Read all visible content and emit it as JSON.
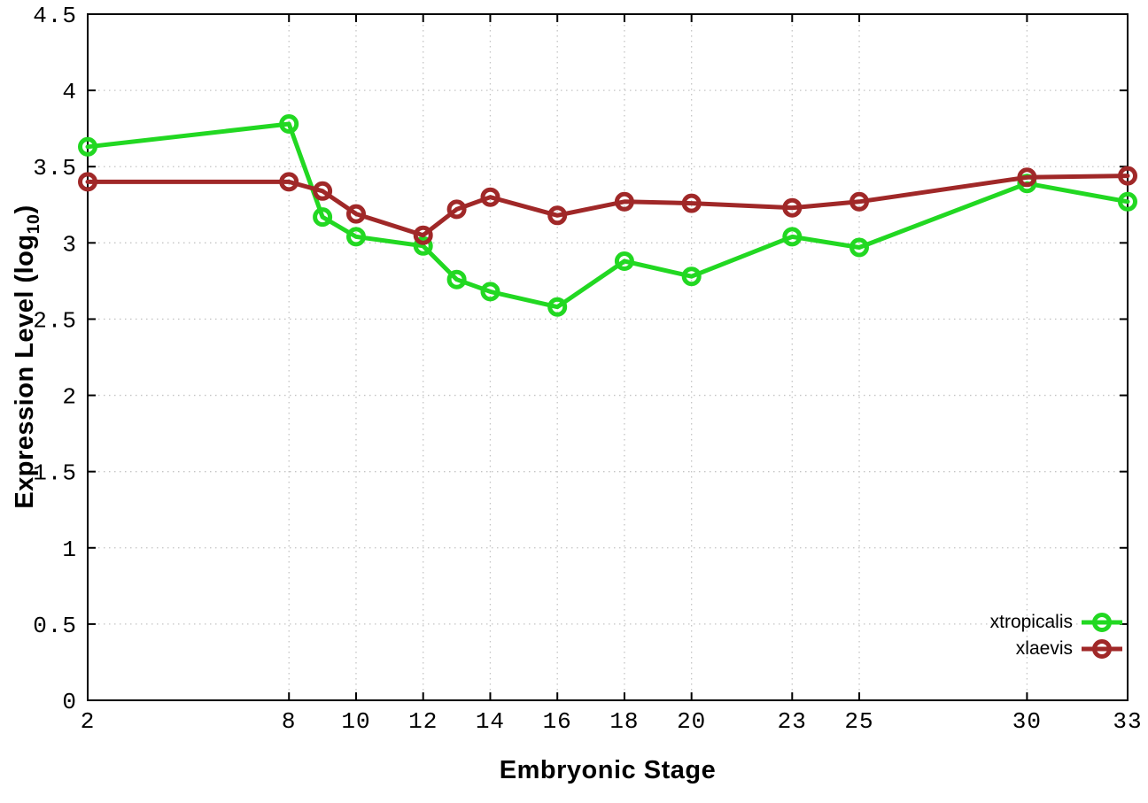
{
  "chart_data": {
    "type": "line",
    "title": "",
    "xlabel": "Embryonic Stage",
    "ylabel": "Expression Level (log10)",
    "ylabel_main": "Expression Level (log",
    "ylabel_sub": "10",
    "ylabel_close": ")",
    "xlim": [
      2,
      33
    ],
    "ylim": [
      0,
      4.5
    ],
    "grid": true,
    "legend_position": "bottom-right",
    "x_ticks": [
      2,
      8,
      10,
      12,
      14,
      16,
      18,
      20,
      23,
      25,
      30,
      33
    ],
    "x_tick_labels": [
      "2",
      "8",
      "10",
      "12",
      "14",
      "16",
      "18",
      "20",
      "23",
      "25",
      "30",
      "33"
    ],
    "y_ticks": [
      0,
      0.5,
      1,
      1.5,
      2,
      2.5,
      3,
      3.5,
      4,
      4.5
    ],
    "y_tick_labels": [
      "0",
      "0.5",
      "1",
      "1.5",
      "2",
      "2.5",
      "3",
      "3.5",
      "4",
      "4.5"
    ],
    "x": [
      2,
      8,
      9,
      10,
      12,
      13,
      14,
      16,
      18,
      20,
      23,
      25,
      30,
      33
    ],
    "series": [
      {
        "name": "xtropicalis",
        "color": "#22d822",
        "values": [
          3.63,
          3.78,
          3.17,
          3.04,
          2.98,
          2.76,
          2.68,
          2.58,
          2.88,
          2.78,
          3.04,
          2.97,
          3.39,
          3.27
        ]
      },
      {
        "name": "xlaevis",
        "color": "#a02828",
        "values": [
          3.4,
          3.4,
          3.34,
          3.19,
          3.05,
          3.22,
          3.3,
          3.18,
          3.27,
          3.26,
          3.23,
          3.27,
          3.43,
          3.44
        ]
      }
    ],
    "style": {
      "grid_color": "#c4c4c4",
      "axis_color": "#000000",
      "tick_label_color": "#000000"
    }
  }
}
